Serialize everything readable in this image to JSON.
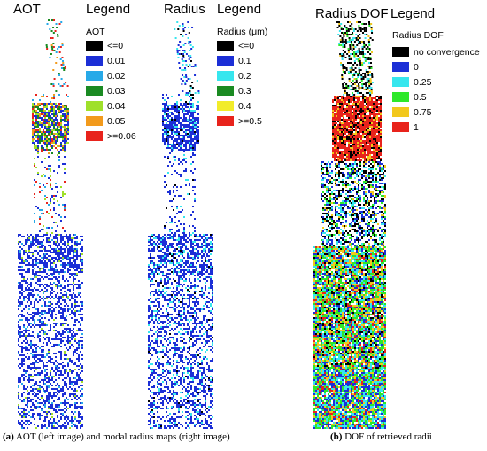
{
  "panels": [
    {
      "id": "aot",
      "title": "AOT",
      "legend_title": "Legend",
      "legend_subtitle": "AOT",
      "legend": [
        {
          "label": "<=0",
          "color": "#000000"
        },
        {
          "label": "0.01",
          "color": "#1c2fd6"
        },
        {
          "label": "0.02",
          "color": "#27a9e8"
        },
        {
          "label": "0.03",
          "color": "#1a8a22"
        },
        {
          "label": "0.04",
          "color": "#9fe02a"
        },
        {
          "label": "0.05",
          "color": "#f29a1c"
        },
        {
          "label": ">=0.06",
          "color": "#e8231c"
        }
      ]
    },
    {
      "id": "radius",
      "title": "Radius",
      "legend_title": "Legend",
      "legend_subtitle": "Radius (μm)",
      "legend": [
        {
          "label": "<=0",
          "color": "#000000"
        },
        {
          "label": "0.1",
          "color": "#1c2fd6"
        },
        {
          "label": "0.2",
          "color": "#36e6ee"
        },
        {
          "label": "0.3",
          "color": "#1a8a22"
        },
        {
          "label": "0.4",
          "color": "#f2ec2a"
        },
        {
          "label": ">=0.5",
          "color": "#e8231c"
        }
      ]
    },
    {
      "id": "dof",
      "title": "Radius DOF",
      "legend_title": "Legend",
      "legend_subtitle": "Radius DOF",
      "legend": [
        {
          "label": "no convergence",
          "color": "#000000"
        },
        {
          "label": "0",
          "color": "#1c2fd6"
        },
        {
          "label": "0.25",
          "color": "#36e6ee"
        },
        {
          "label": "0.5",
          "color": "#2ee82a"
        },
        {
          "label": "0.75",
          "color": "#f2c81c"
        },
        {
          "label": "1",
          "color": "#e8231c"
        }
      ]
    }
  ],
  "captions": {
    "a_tag": "(a)",
    "a_text": " AOT (left image) and modal radius maps (right image)",
    "b_tag": "(b)",
    "b_text": " DOF of retrieved radii"
  }
}
